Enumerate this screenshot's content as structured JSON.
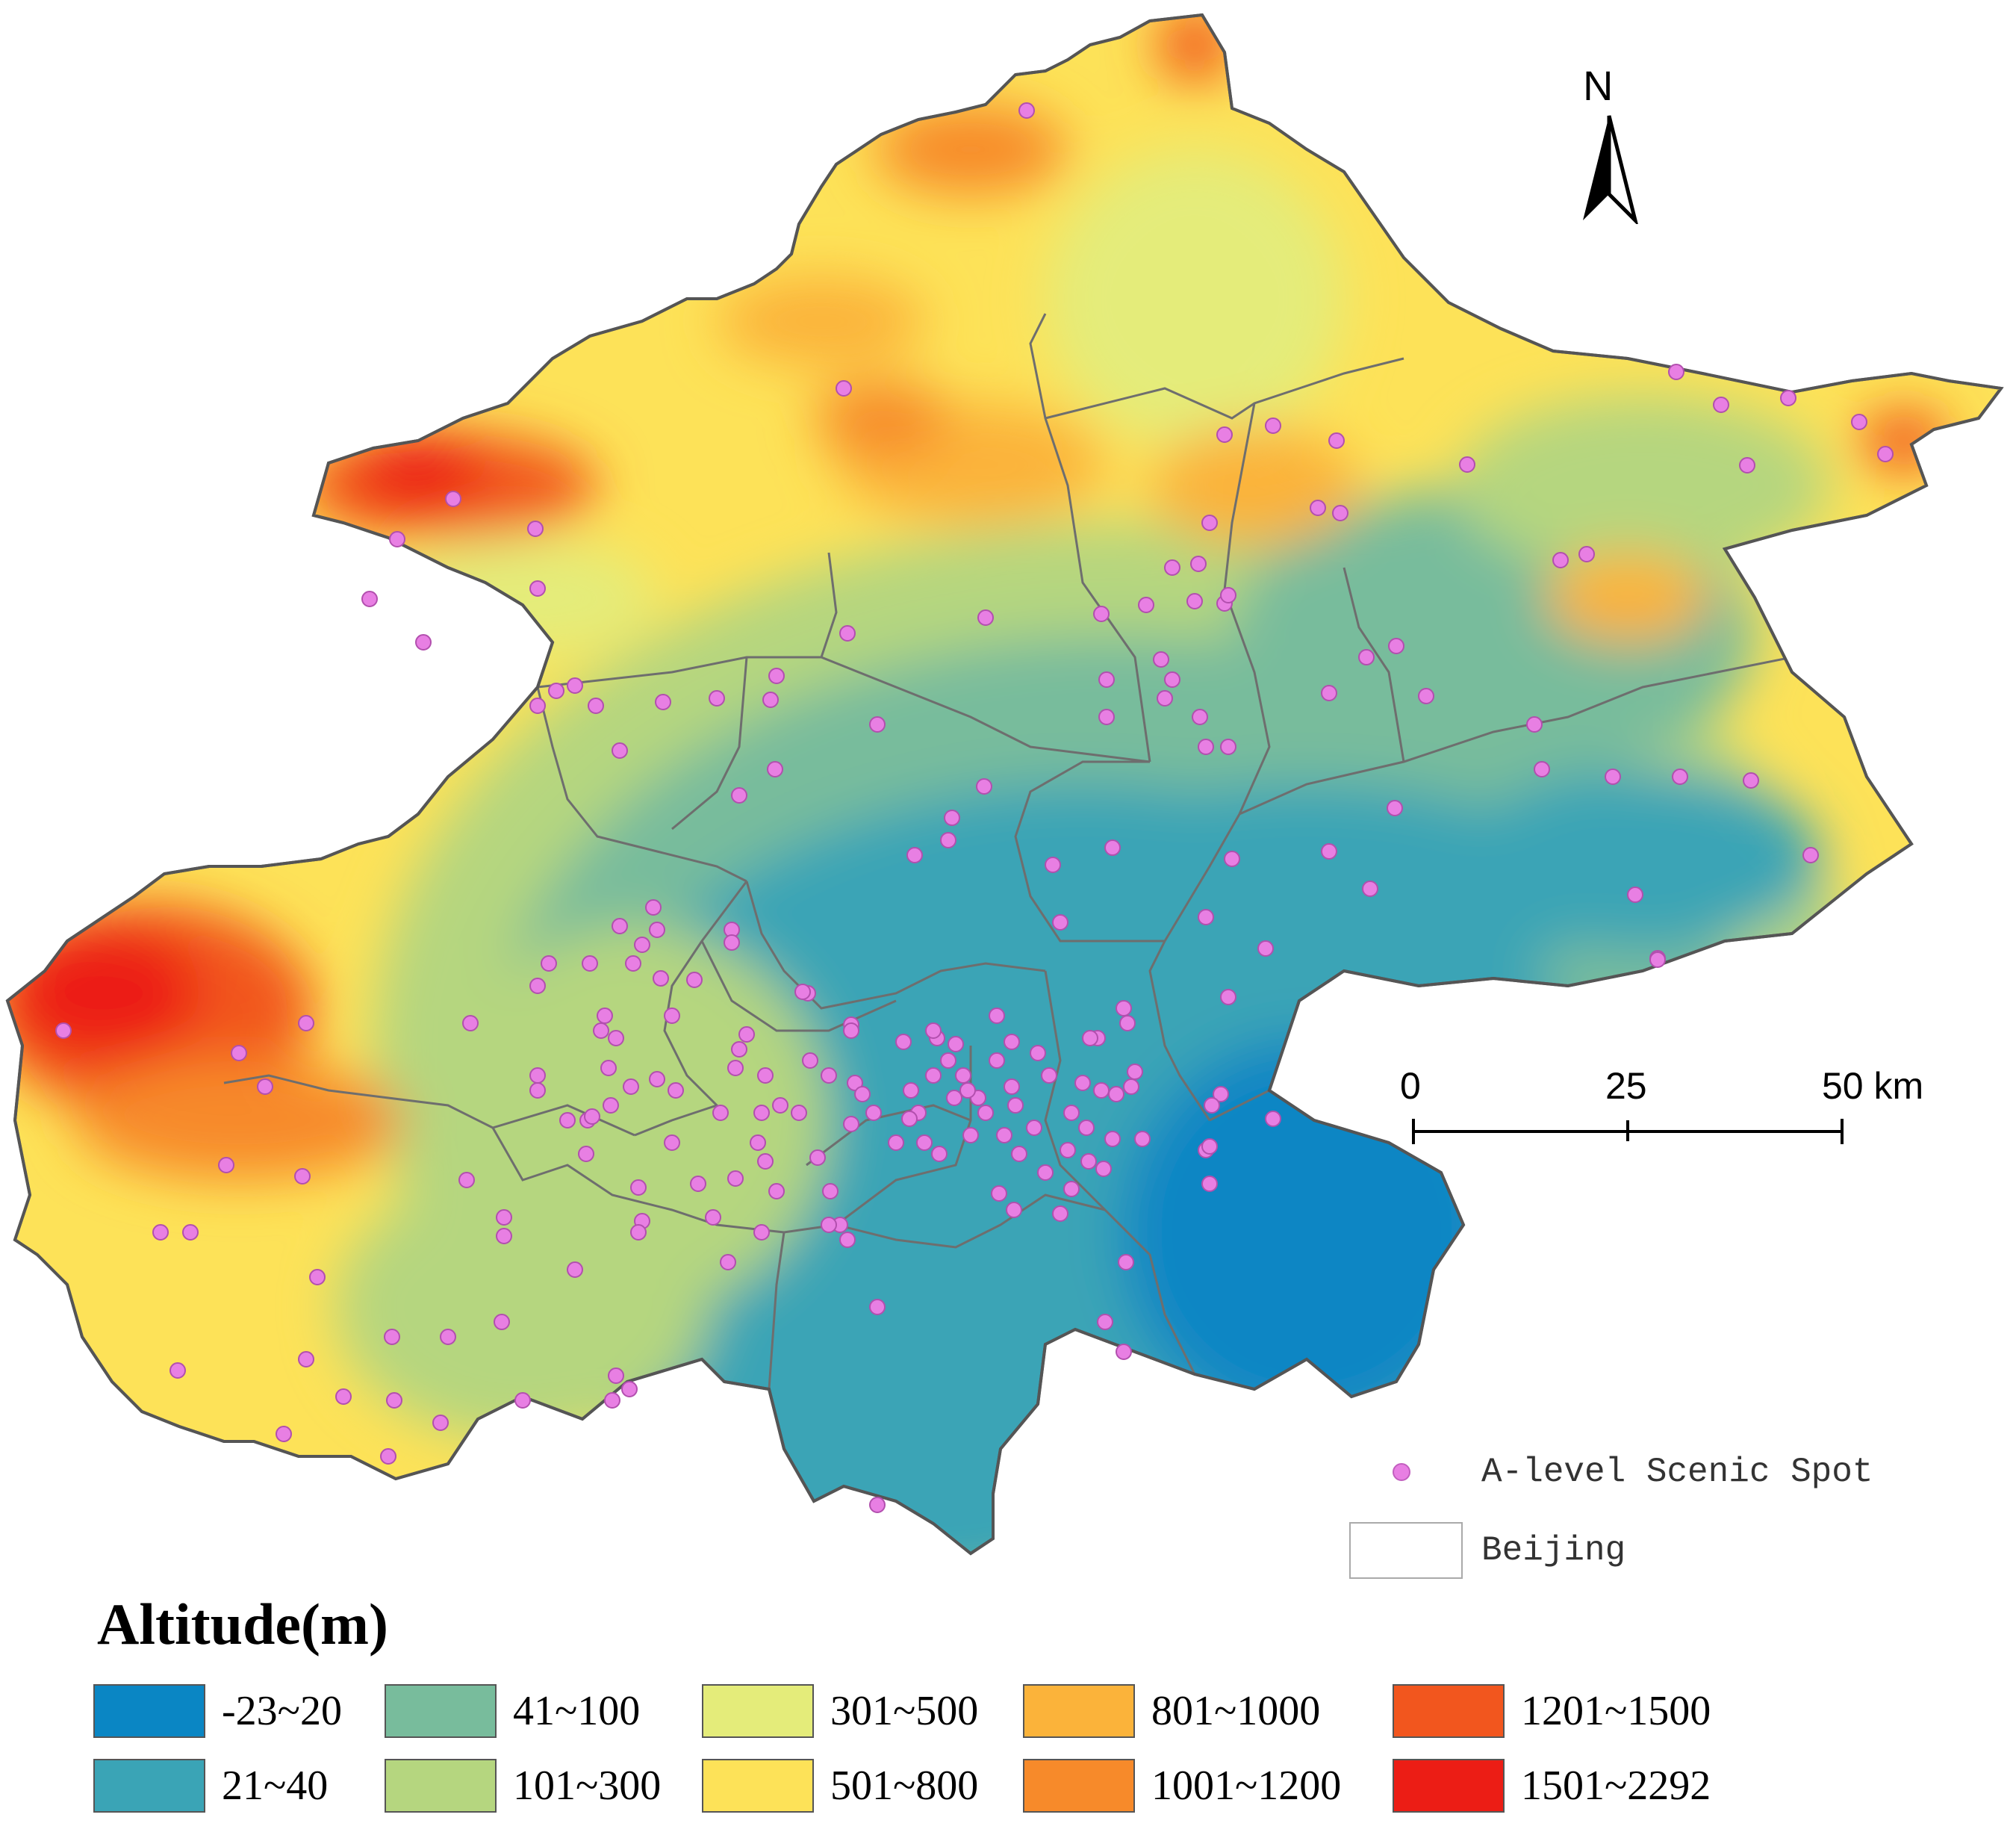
{
  "map": {
    "north_label": "N",
    "scale": {
      "ticks": [
        "0",
        "25",
        "50 km"
      ]
    },
    "point_legend_label": "A-level Scenic Spot",
    "boundary_legend_label": "Beijing",
    "point_color": "#e87fe3"
  },
  "altitude_legend": {
    "title": "Altitude(m)",
    "classes": [
      {
        "label": "-23~20",
        "color": "#0a86c4"
      },
      {
        "label": "21~40",
        "color": "#3aa4b6"
      },
      {
        "label": "41~100",
        "color": "#78bc9c"
      },
      {
        "label": "101~300",
        "color": "#b5d67f"
      },
      {
        "label": "301~500",
        "color": "#e4ec7a"
      },
      {
        "label": "501~800",
        "color": "#fde258"
      },
      {
        "label": "801~1000",
        "color": "#fbb33a"
      },
      {
        "label": "1001~1200",
        "color": "#f78a2a"
      },
      {
        "label": "1201~1500",
        "color": "#f2561e"
      },
      {
        "label": "1501~2292",
        "color": "#ec1d15"
      }
    ]
  }
}
